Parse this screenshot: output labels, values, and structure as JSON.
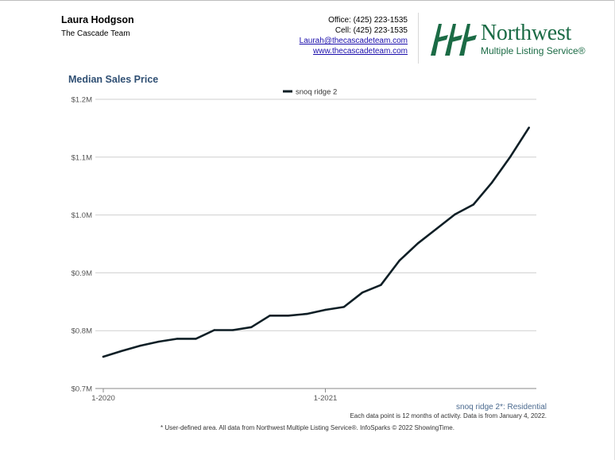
{
  "agent": {
    "name": "Laura Hodgson",
    "team": "The Cascade Team"
  },
  "contact": {
    "office": "Office: (425) 223-1535",
    "cell": "Cell: (425) 223-1535",
    "email": "Laurah@thecascadeteam.com",
    "website": "www.thecascadeteam.com"
  },
  "logo": {
    "word": "Northwest",
    "sub": "Multiple Listing Service®",
    "color": "#1b6b45"
  },
  "chart_data": {
    "type": "line",
    "title": "Median Sales Price",
    "xlabel": "",
    "ylabel": "",
    "ylim": [
      700000,
      1200000
    ],
    "yticks": [
      700000,
      800000,
      900000,
      1000000,
      1100000,
      1200000
    ],
    "ytick_labels": [
      "$0.7M",
      "$0.8M",
      "$0.9M",
      "$1.0M",
      "$1.1M",
      "$1.2M"
    ],
    "xticks": [
      0,
      12
    ],
    "xtick_labels": [
      "1-2020",
      "1-2021"
    ],
    "xlim": [
      0,
      23.4
    ],
    "legend": "top-center",
    "series": [
      {
        "name": "snoq ridge 2",
        "color": "#0f1f26",
        "x": [
          0,
          1,
          2,
          3,
          4,
          5,
          6,
          7,
          8,
          9,
          10,
          11,
          12,
          13,
          14,
          15,
          16,
          17,
          18,
          19,
          20,
          21,
          22,
          23
        ],
        "values": [
          755000,
          765000,
          774000,
          781000,
          786000,
          786000,
          801000,
          801000,
          806000,
          826000,
          826000,
          829000,
          836000,
          841000,
          866000,
          879000,
          921000,
          951000,
          976000,
          1001000,
          1018000,
          1056000,
          1101000,
          1151000
        ]
      }
    ]
  },
  "footer": {
    "region": "snoq ridge 2*: Residential",
    "note": "Each data point is 12 months of activity. Data is from January 4, 2022.",
    "disclaimer": "* User-defined area. All data from Northwest Multiple Listing Service®. InfoSparks © 2022 ShowingTime."
  }
}
